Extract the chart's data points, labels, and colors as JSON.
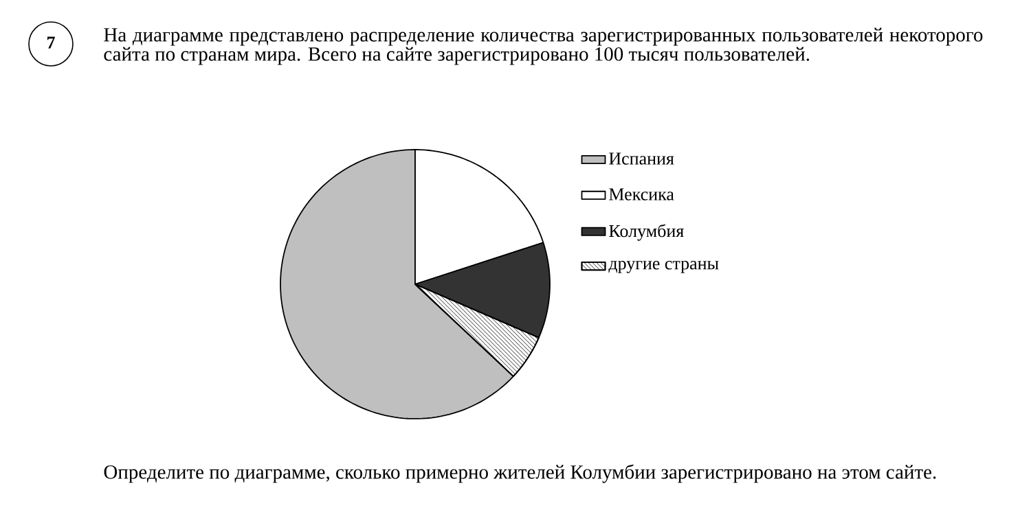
{
  "chart_data": {
    "type": "pie",
    "title": "На диаграмме представлено распределение количества зарегистрированных пользователей некоторого сайта по странам мира. Всего на сайте зарегистрировано 100 тысяч пользователей.",
    "categories": [
      "Испания",
      "Мексика",
      "Колумбия",
      "другие страны"
    ],
    "values": [
      63,
      20,
      11.5,
      5.5
    ],
    "colors": [
      "#bfbfbf",
      "#ffffff",
      "#333333",
      "#ffffff"
    ],
    "legend": "right",
    "annotations": [
      "7",
      "Определите по диаграмме, сколько примерно жителей Колумбии зарегистрировано на этом сайте."
    ]
  }
}
